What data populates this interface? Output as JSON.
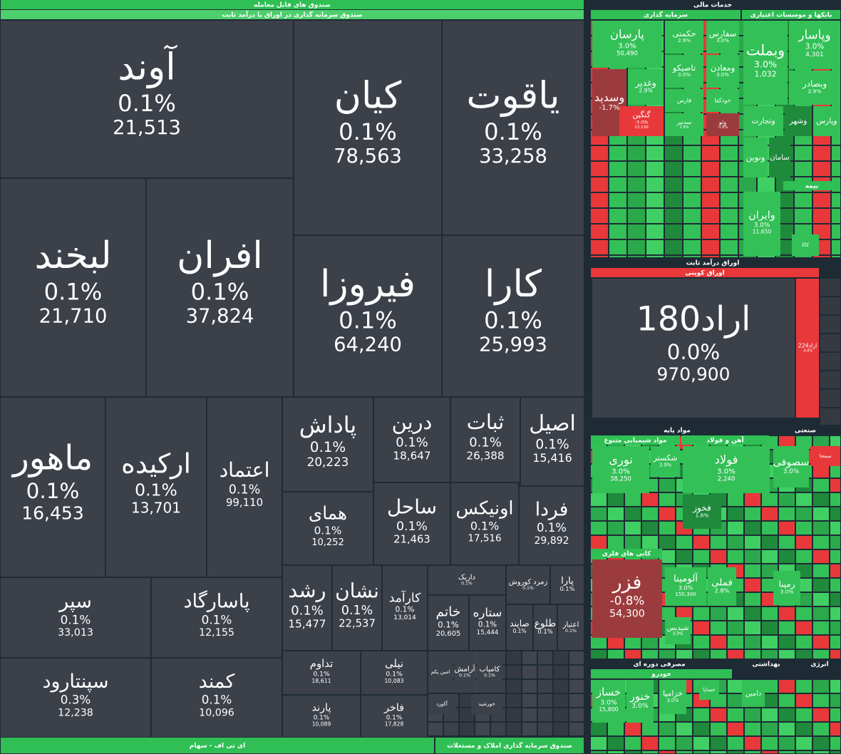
{
  "headers": [
    "صندوق های قابل معامله",
    "صندوق سرمایه گذاری در اوراق با درآمد ثابت",
    "خدمات مالی",
    "سرمایه گذاری",
    "بانکها و موسسات اعتباری",
    "بیمه",
    "اوراق درآمد ثابت",
    "اوراق کوپنی",
    "مواد پایه",
    "صنعتی",
    "مواد شیمیایی متنوع",
    "آهن و فولاد",
    "کانی های فلزی",
    "مصرفی دوره ای",
    "خودرو",
    "بهداشتی",
    "انرژی",
    "ای تی اف - سهام",
    "صندوق سرمایه گذاری املاک و مستغلات"
  ],
  "tiles": [
    {
      "name": "آوند",
      "change": "0.1%",
      "volume": "21,513"
    },
    {
      "name": "کیان",
      "change": "0.1%",
      "volume": "78,563"
    },
    {
      "name": "یاقوت",
      "change": "0.1%",
      "volume": "33,258"
    },
    {
      "name": "لبخند",
      "change": "0.1%",
      "volume": "21,710"
    },
    {
      "name": "افران",
      "change": "0.1%",
      "volume": "37,824"
    },
    {
      "name": "فیروزا",
      "change": "0.1%",
      "volume": "64,240"
    },
    {
      "name": "کارا",
      "change": "0.1%",
      "volume": "25,993"
    },
    {
      "name": "ماهور",
      "change": "0.1%",
      "volume": "16,453"
    },
    {
      "name": "ارکیده",
      "change": "0.1%",
      "volume": "13,701"
    },
    {
      "name": "اعتماد",
      "change": "0.1%",
      "volume": "99,110"
    },
    {
      "name": "پاداش",
      "change": "0.1%",
      "volume": "20,223"
    },
    {
      "name": "درین",
      "change": "0.1%",
      "volume": "18,647"
    },
    {
      "name": "ثبات",
      "change": "0.1%",
      "volume": "26,388"
    },
    {
      "name": "اصیل",
      "change": "0.1%",
      "volume": "15,416"
    },
    {
      "name": "همای",
      "change": "0.1%",
      "volume": "10,252"
    },
    {
      "name": "ساحل",
      "change": "0.1%",
      "volume": "21,463"
    },
    {
      "name": "اونیکس",
      "change": "0.1%",
      "volume": "17,516"
    },
    {
      "name": "فردا",
      "change": "0.1%",
      "volume": "29,892"
    },
    {
      "name": "سپر",
      "change": "0.1%",
      "volume": "33,013"
    },
    {
      "name": "پاسارگاد",
      "change": "0.1%",
      "volume": "12,155"
    },
    {
      "name": "سپنتارود",
      "change": "0.3%",
      "volume": "12,238"
    },
    {
      "name": "کمند",
      "change": "0.1%",
      "volume": "10,096"
    },
    {
      "name": "رشد",
      "change": "0.1%",
      "volume": "15,477"
    },
    {
      "name": "نشان",
      "change": "0.1%",
      "volume": "22,537"
    },
    {
      "name": "کارآمد",
      "change": "0.1%",
      "volume": "13,014"
    },
    {
      "name": "تداوم",
      "change": "0.1%",
      "volume": "18,611"
    },
    {
      "name": "نیلی",
      "change": "0.1%",
      "volume": "10,083"
    },
    {
      "name": "پارند",
      "change": "0.1%",
      "volume": "10,089"
    },
    {
      "name": "فاخر",
      "change": "0.1%",
      "volume": "17,828"
    },
    {
      "name": "خاتم",
      "change": "0.1%",
      "volume": "20,605"
    },
    {
      "name": "ستاره",
      "change": "0.1%",
      "volume": "15,444"
    },
    {
      "name": "داریک",
      "change": "0.1%"
    },
    {
      "name": "زمرد کوروش",
      "change": "0.1%"
    },
    {
      "name": "پارا",
      "change": "0.1%"
    },
    {
      "name": "صایند",
      "change": "0.1%"
    },
    {
      "name": "طلوع",
      "change": "0.1%"
    },
    {
      "name": "اعتبار",
      "change": "0.1%"
    },
    {
      "name": "امین یکم"
    },
    {
      "name": "آرامش",
      "change": "0.1%"
    },
    {
      "name": "کامیاب",
      "change": "0.1%"
    },
    {
      "name": "آکورد"
    },
    {
      "name": "خورشید"
    },
    {
      "name": "پارسان",
      "change": "3.0%",
      "volume": "50,490"
    },
    {
      "name": "حکمتی",
      "change": "2.9%"
    },
    {
      "name": "سفارس",
      "change": "3.0%"
    },
    {
      "name": "تاصیکو",
      "change": "3.0%"
    },
    {
      "name": "ومعادن",
      "change": "3.0%"
    },
    {
      "name": "وغدیر",
      "change": "2.9%"
    },
    {
      "name": "وسدید",
      "change": "-1.7%"
    },
    {
      "name": "گنگین",
      "change": "-3.0%",
      "volume": "13,130"
    },
    {
      "name": "فارس"
    },
    {
      "name": "خودکفا"
    },
    {
      "name": "سدبیر",
      "change": "2.9%"
    },
    {
      "name": "وثو",
      "change": "-1.8%"
    },
    {
      "name": "وبملت",
      "change": "3.0%",
      "volume": "1,032"
    },
    {
      "name": "وپاسار",
      "change": "3.0%",
      "volume": "4,301"
    },
    {
      "name": "وبصادر",
      "change": "2.9%"
    },
    {
      "name": "وتجارت"
    },
    {
      "name": "وشهر"
    },
    {
      "name": "وپارس"
    },
    {
      "name": "ونوین"
    },
    {
      "name": "سامان"
    },
    {
      "name": "وایران",
      "change": "3.0%",
      "volume": "11,650"
    },
    {
      "name": "کالا"
    },
    {
      "name": "اراد180",
      "change": "0.0%",
      "volume": "970,900"
    },
    {
      "name": "اراد224",
      "change": "-4.8%"
    },
    {
      "name": "نوری",
      "change": "3.0%",
      "volume": "38,250"
    },
    {
      "name": "شکستر",
      "change": "2.9%"
    },
    {
      "name": "فولاد",
      "change": "3.0%",
      "volume": "2,240"
    },
    {
      "name": "فخوز",
      "change": "1.6%"
    },
    {
      "name": "سصوفی",
      "change": "3.0%"
    },
    {
      "name": "سمحا"
    },
    {
      "name": "فزر",
      "change": "-0.8%",
      "volume": "54,300"
    },
    {
      "name": "آلومینا",
      "change": "3.0%",
      "volume": "150,300"
    },
    {
      "name": "فملی",
      "change": "2.8%"
    },
    {
      "name": "شپدیس",
      "change": "3.0%"
    },
    {
      "name": "رمپنا",
      "change": "3.0%"
    },
    {
      "name": "خساز",
      "change": "3.0%",
      "volume": "15,800"
    },
    {
      "name": "خنور",
      "change": "3.0%"
    },
    {
      "name": "خزامیا",
      "change": "3.0%"
    },
    {
      "name": "خساپا"
    },
    {
      "name": "دامین"
    }
  ]
}
